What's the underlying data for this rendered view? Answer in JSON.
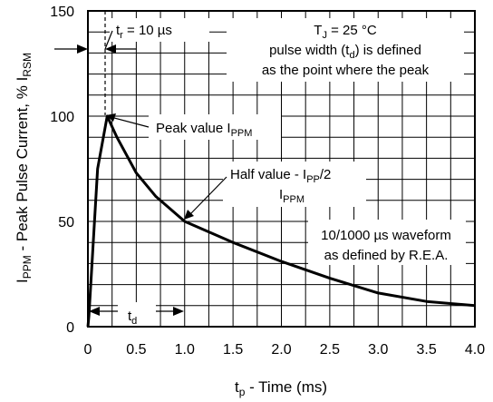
{
  "chart_data": {
    "type": "line",
    "title": "",
    "xlabel": "t_p - Time (ms)",
    "ylabel": "I_PPM - Peak Pulse Current, % I_RSM",
    "xlim": [
      0,
      4.0
    ],
    "ylim": [
      0,
      150
    ],
    "x_ticks": [
      "0",
      "0.5",
      "1.0",
      "1.5",
      "2.0",
      "2.5",
      "3.0",
      "3.5",
      "4.0"
    ],
    "y_ticks": [
      "0",
      "50",
      "100",
      "150"
    ],
    "grid": true,
    "series": [
      {
        "x": [
          0,
          0.01,
          0.1,
          0.2,
          0.3,
          0.5,
          0.7,
          0.9,
          1.0,
          1.5,
          2.0,
          2.5,
          3.0,
          3.5,
          4.0
        ],
        "y": [
          0,
          5,
          75,
          100,
          90,
          73,
          62,
          54,
          50,
          40,
          31,
          23,
          16,
          12,
          10
        ]
      }
    ],
    "annotations": {
      "tr": "t_r = 10 µs",
      "tj": "T_J = 25 °C",
      "pulse_width_line1": "pulse width (t_d) is defined",
      "pulse_width_line2": "as the point where the peak",
      "peak": "Peak value I_PPM",
      "half_line1": "Half value - I_PP/2",
      "half_line2": "I_PPM",
      "waveform_line1": "10/1000 µs waveform",
      "waveform_line2": "as defined by R.E.A.",
      "td": "t_d"
    }
  }
}
